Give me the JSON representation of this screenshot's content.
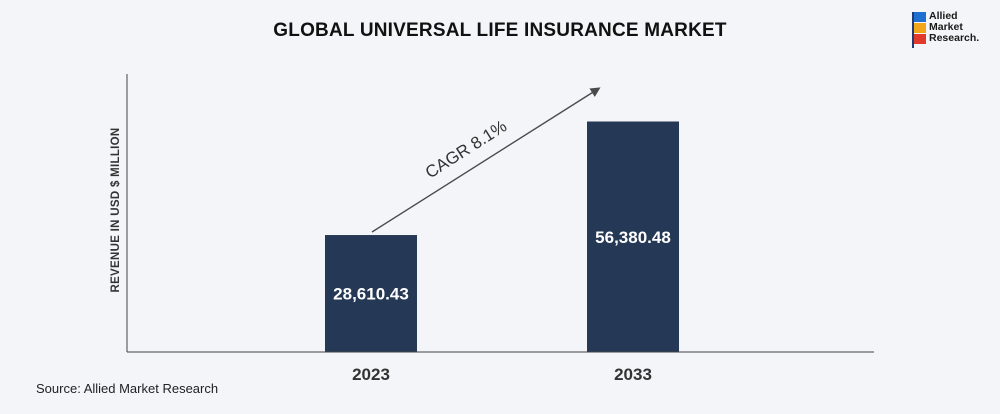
{
  "source_text": "Source: Allied Market Research",
  "logo": {
    "lines": [
      "Allied",
      "Market",
      "Research."
    ],
    "colors": [
      "#1f6fd1",
      "#f2a71b",
      "#e2392d"
    ]
  },
  "annotation": {
    "label": "CAGR 8.1%"
  },
  "chart_data": {
    "type": "bar",
    "title": "GLOBAL UNIVERSAL LIFE INSURANCE MARKET",
    "xlabel": "",
    "ylabel": "REVENUE IN USD $ MILLION",
    "categories": [
      "2023",
      "2033"
    ],
    "values": [
      28610.43,
      56380.48
    ],
    "value_labels": [
      "28,610.43",
      "56,380.48"
    ],
    "ylim": [
      0,
      68000
    ],
    "bar_color": "#253855",
    "grid": false,
    "legend": "none"
  }
}
